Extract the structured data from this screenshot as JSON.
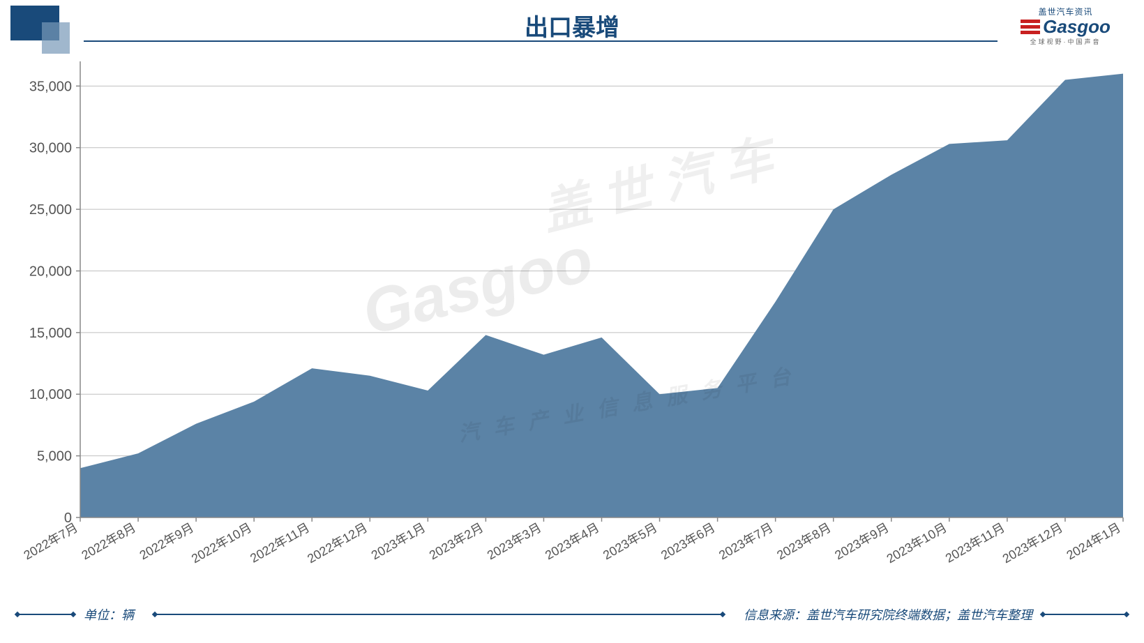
{
  "title": "出口暴增",
  "logo": {
    "top_text": "盖世汽车资讯",
    "main_text": "Gasgoo",
    "sub_text": "全球视野·中国声音"
  },
  "chart": {
    "type": "area",
    "x_labels": [
      "2022年7月",
      "2022年8月",
      "2022年9月",
      "2022年10月",
      "2022年11月",
      "2022年12月",
      "2023年1月",
      "2023年2月",
      "2023年3月",
      "2023年4月",
      "2023年5月",
      "2023年6月",
      "2023年7月",
      "2023年8月",
      "2023年9月",
      "2023年10月",
      "2023年11月",
      "2023年12月",
      "2024年1月"
    ],
    "values": [
      4000,
      5200,
      7600,
      9400,
      12100,
      11500,
      10300,
      14800,
      13200,
      14600,
      10000,
      10500,
      17500,
      25000,
      27800,
      30300,
      30600,
      35500,
      36000
    ],
    "y_ticks": [
      0,
      5000,
      10000,
      15000,
      20000,
      25000,
      30000,
      35000
    ],
    "y_tick_labels": [
      "0",
      "5,000",
      "10,000",
      "15,000",
      "20,000",
      "25,000",
      "30,000",
      "35,000"
    ],
    "ylim": [
      0,
      37000
    ],
    "area_color": "#5b83a6",
    "grid_color": "#bfbfbf",
    "axis_color": "#888888",
    "background_color": "#ffffff",
    "tick_label_color": "#555555",
    "tick_fontsize_y": 20,
    "tick_fontsize_x": 18,
    "x_label_rotation": -30
  },
  "footer": {
    "unit_label": "单位：辆",
    "source_label": "信息来源：盖世汽车研究院终端数据；盖世汽车整理"
  },
  "watermark": {
    "main": "Gasgoo",
    "cn": "盖 世 汽 车",
    "sub": "汽 车 产 业 信 息 服 务 平 台"
  },
  "colors": {
    "brand_primary": "#194a7a",
    "brand_accent": "#c82020"
  }
}
